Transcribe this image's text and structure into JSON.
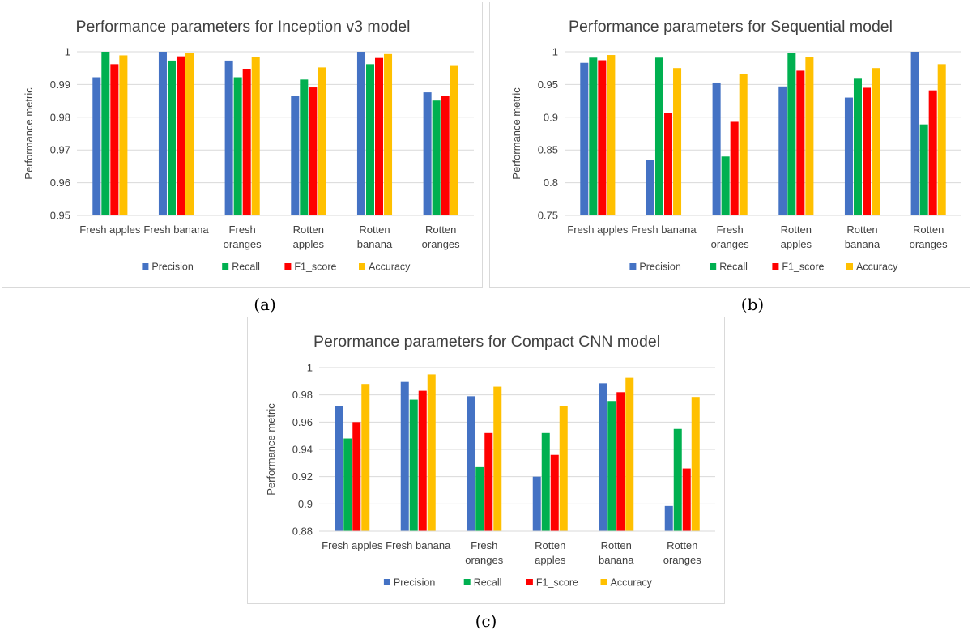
{
  "captions": [
    "(a)",
    "(b)",
    "(c)"
  ],
  "chart_data": [
    {
      "type": "bar",
      "title": "Performance parameters for Inception v3 model",
      "ylabel": "Performance metric",
      "xlabel": "",
      "ylim": [
        0.95,
        1
      ],
      "yticks": [
        "0.95",
        "0.96",
        "0.97",
        "0.98",
        "0.99",
        "1"
      ],
      "ytick_values": [
        0.95,
        0.96,
        0.97,
        0.98,
        0.99,
        1
      ],
      "grid": true,
      "legend": "bottom",
      "categories": [
        [
          "Fresh apples"
        ],
        [
          "Fresh banana"
        ],
        [
          "Fresh",
          "oranges"
        ],
        [
          "Rotten",
          "apples"
        ],
        [
          "Rotten",
          "banana"
        ],
        [
          "Rotten",
          "oranges"
        ]
      ],
      "series": [
        {
          "name": "Precision",
          "color": "#4472c4",
          "values": [
            0.9922,
            1.0,
            0.9973,
            0.9866,
            1.0,
            0.9876
          ]
        },
        {
          "name": "Recall",
          "color": "#00b050",
          "values": [
            1.0,
            0.9973,
            0.9922,
            0.9915,
            0.9962,
            0.9851
          ]
        },
        {
          "name": "F1_score",
          "color": "#ff0000",
          "values": [
            0.9962,
            0.9986,
            0.9948,
            0.9891,
            0.9981,
            0.9864
          ]
        },
        {
          "name": "Accuracy",
          "color": "#ffc000",
          "values": [
            0.9989,
            0.9996,
            0.9985,
            0.9952,
            0.9993,
            0.9959
          ]
        }
      ]
    },
    {
      "type": "bar",
      "title": "Performance parameters for Sequential model",
      "ylabel": "Performance metric",
      "xlabel": "",
      "ylim": [
        0.75,
        1
      ],
      "yticks": [
        "0.75",
        "0.8",
        "0.85",
        "0.9",
        "0.95",
        "1"
      ],
      "ytick_values": [
        0.75,
        0.8,
        0.85,
        0.9,
        0.95,
        1
      ],
      "grid": true,
      "legend": "bottom",
      "categories": [
        [
          "Fresh apples"
        ],
        [
          "Fresh banana"
        ],
        [
          "Fresh",
          "oranges"
        ],
        [
          "Rotten",
          "apples"
        ],
        [
          "Rotten",
          "banana"
        ],
        [
          "Rotten",
          "oranges"
        ]
      ],
      "series": [
        {
          "name": "Precision",
          "color": "#4472c4",
          "values": [
            0.983,
            0.835,
            0.953,
            0.947,
            0.93,
            1.0
          ]
        },
        {
          "name": "Recall",
          "color": "#00b050",
          "values": [
            0.991,
            0.991,
            0.84,
            0.998,
            0.96,
            0.889
          ]
        },
        {
          "name": "F1_score",
          "color": "#ff0000",
          "values": [
            0.987,
            0.906,
            0.893,
            0.971,
            0.945,
            0.941
          ]
        },
        {
          "name": "Accuracy",
          "color": "#ffc000",
          "values": [
            0.995,
            0.975,
            0.966,
            0.992,
            0.975,
            0.981
          ]
        }
      ]
    },
    {
      "type": "bar",
      "title": "Perormance parameters for Compact CNN model",
      "ylabel": "Performance metric",
      "xlabel": "",
      "ylim": [
        0.88,
        1
      ],
      "yticks": [
        "0.88",
        "0.9",
        "0.92",
        "0.94",
        "0.96",
        "0.98",
        "1"
      ],
      "ytick_values": [
        0.88,
        0.9,
        0.92,
        0.94,
        0.96,
        0.98,
        1
      ],
      "grid": true,
      "legend": "bottom",
      "categories": [
        [
          "Fresh apples"
        ],
        [
          "Fresh banana"
        ],
        [
          "Fresh",
          "oranges"
        ],
        [
          "Rotten",
          "apples"
        ],
        [
          "Rotten",
          "banana"
        ],
        [
          "Rotten",
          "oranges"
        ]
      ],
      "series": [
        {
          "name": "Precision",
          "color": "#4472c4",
          "values": [
            0.972,
            0.9895,
            0.979,
            0.92,
            0.9885,
            0.8985
          ]
        },
        {
          "name": "Recall",
          "color": "#00b050",
          "values": [
            0.948,
            0.9765,
            0.927,
            0.952,
            0.9755,
            0.955
          ]
        },
        {
          "name": "F1_score",
          "color": "#ff0000",
          "values": [
            0.96,
            0.983,
            0.952,
            0.936,
            0.982,
            0.926
          ]
        },
        {
          "name": "Accuracy",
          "color": "#ffc000",
          "values": [
            0.988,
            0.995,
            0.986,
            0.972,
            0.9925,
            0.9785
          ]
        }
      ]
    }
  ]
}
